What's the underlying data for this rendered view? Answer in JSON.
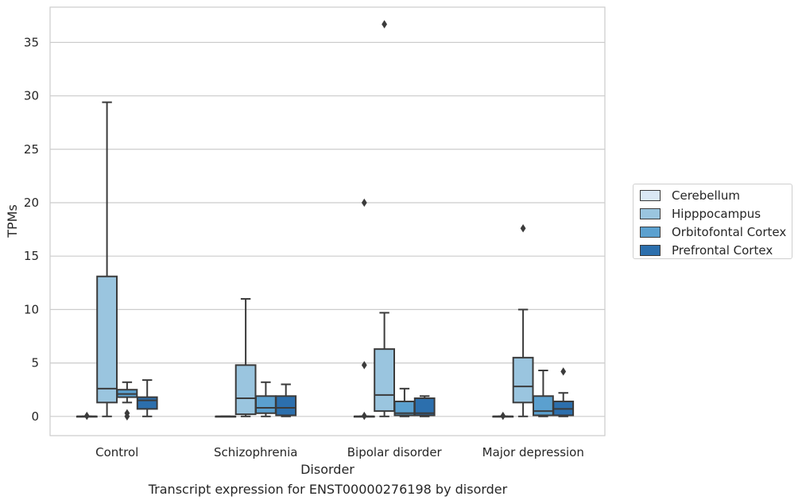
{
  "chart_data": {
    "type": "box",
    "title": "",
    "caption": "Transcript expression for ENST00000276198 by disorder",
    "xlabel": "Disorder",
    "ylabel": "TPMs",
    "ylim": [
      -1.8,
      38.3
    ],
    "yticks": [
      0,
      5,
      10,
      15,
      20,
      25,
      30,
      35
    ],
    "grid": "horizontal",
    "legend_position": "right",
    "categories": [
      "Control",
      "Schizophrenia",
      "Bipolar disorder",
      "Major depression"
    ],
    "series": [
      {
        "name": "Cerebellum",
        "color": "#dae8f5",
        "boxes": [
          {
            "min": 0,
            "q1": 0,
            "median": 0,
            "q3": 0,
            "max": 0,
            "outliers": [
              0.05
            ]
          },
          {
            "min": 0,
            "q1": 0,
            "median": 0,
            "q3": 0,
            "max": 0,
            "outliers": []
          },
          {
            "min": 0,
            "q1": 0,
            "median": 0,
            "q3": 0,
            "max": 0,
            "outliers": [
              0.05,
              4.8,
              20.0
            ]
          },
          {
            "min": 0,
            "q1": 0,
            "median": 0,
            "q3": 0,
            "max": 0,
            "outliers": [
              0.05
            ]
          }
        ]
      },
      {
        "name": "Hipppocampus",
        "color": "#9ac5df",
        "boxes": [
          {
            "min": 0,
            "q1": 1.3,
            "median": 2.6,
            "q3": 13.1,
            "max": 29.4,
            "outliers": []
          },
          {
            "min": 0,
            "q1": 0.2,
            "median": 1.7,
            "q3": 4.8,
            "max": 11.0,
            "outliers": []
          },
          {
            "min": 0,
            "q1": 0.5,
            "median": 2.0,
            "q3": 6.3,
            "max": 9.7,
            "outliers": [
              36.7
            ]
          },
          {
            "min": 0,
            "q1": 1.3,
            "median": 2.8,
            "q3": 5.5,
            "max": 10.0,
            "outliers": [
              17.6
            ]
          }
        ]
      },
      {
        "name": "Orbitofontal Cortex",
        "color": "#5ba0cf",
        "boxes": [
          {
            "min": 1.3,
            "q1": 1.8,
            "median": 2.1,
            "q3": 2.5,
            "max": 3.2,
            "outliers": [
              0.0,
              0.3
            ]
          },
          {
            "min": 0,
            "q1": 0.3,
            "median": 0.8,
            "q3": 1.9,
            "max": 3.2,
            "outliers": []
          },
          {
            "min": 0,
            "q1": 0.1,
            "median": 0.3,
            "q3": 1.4,
            "max": 2.6,
            "outliers": []
          },
          {
            "min": 0,
            "q1": 0.1,
            "median": 0.5,
            "q3": 1.9,
            "max": 4.3,
            "outliers": []
          }
        ]
      },
      {
        "name": "Prefrontal Cortex",
        "color": "#2c6fad",
        "boxes": [
          {
            "min": 0,
            "q1": 0.7,
            "median": 1.5,
            "q3": 1.8,
            "max": 3.4,
            "outliers": []
          },
          {
            "min": 0,
            "q1": 0.1,
            "median": 0.8,
            "q3": 1.9,
            "max": 3.0,
            "outliers": []
          },
          {
            "min": 0,
            "q1": 0.1,
            "median": 0.3,
            "q3": 1.7,
            "max": 1.9,
            "outliers": []
          },
          {
            "min": 0,
            "q1": 0.1,
            "median": 0.7,
            "q3": 1.4,
            "max": 2.2,
            "outliers": [
              4.2
            ]
          }
        ]
      }
    ]
  }
}
